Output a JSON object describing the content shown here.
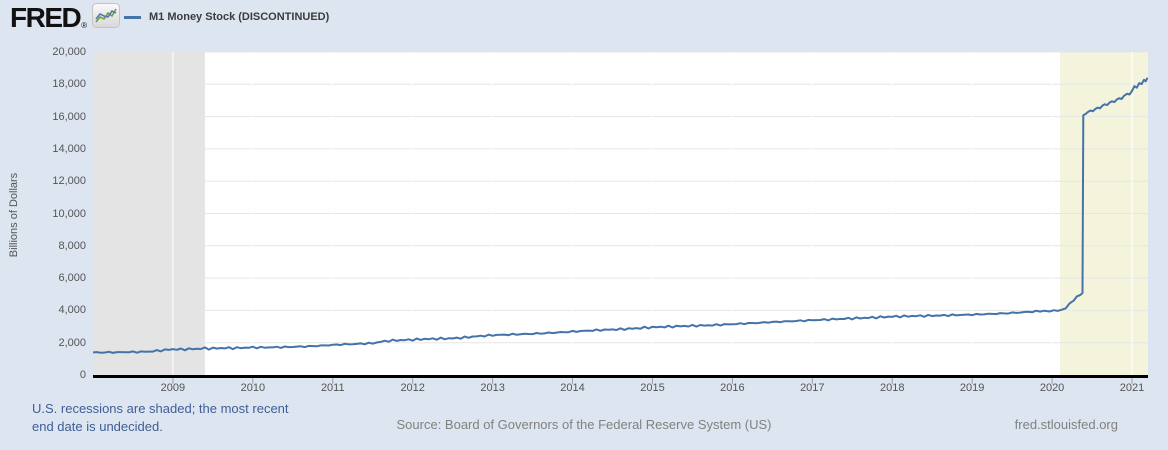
{
  "header": {
    "logo_text": "FRED",
    "registered_mark": "®",
    "legend": {
      "series_label": "M1 Money Stock (DISCONTINUED)",
      "series_color": "#4572a7"
    }
  },
  "chart_data": {
    "type": "line",
    "title": "M1 Money Stock (DISCONTINUED)",
    "xlabel": "",
    "ylabel": "Billions of Dollars",
    "x_domain": [
      2008.0,
      2021.2
    ],
    "ylim": [
      0,
      20000
    ],
    "y_ticks": [
      0,
      2000,
      4000,
      6000,
      8000,
      10000,
      12000,
      14000,
      16000,
      18000,
      20000
    ],
    "x_ticks": [
      2009,
      2010,
      2011,
      2012,
      2013,
      2014,
      2015,
      2016,
      2017,
      2018,
      2019,
      2020,
      2021
    ],
    "grid": "horizontal",
    "legend_position": "top-left",
    "plot_bg": "#ffffff",
    "gridline_color": "#e6e6e6",
    "axis_color": "#000000",
    "tick_color": "#9e9e9e",
    "recession_bands": [
      {
        "start": 2008.0,
        "end": 2009.4,
        "color": "#e4e4e4"
      },
      {
        "start": 2020.1,
        "end": 2021.2,
        "color": "#f4f4dc"
      }
    ],
    "series": [
      {
        "name": "M1 Money Stock (DISCONTINUED)",
        "color": "#4572a7",
        "points": [
          [
            2008.0,
            1400
          ],
          [
            2008.1,
            1395
          ],
          [
            2008.2,
            1405
          ],
          [
            2008.3,
            1400
          ],
          [
            2008.4,
            1415
          ],
          [
            2008.5,
            1420
          ],
          [
            2008.6,
            1435
          ],
          [
            2008.7,
            1450
          ],
          [
            2008.75,
            1470
          ],
          [
            2008.85,
            1520
          ],
          [
            2009.0,
            1595
          ],
          [
            2009.1,
            1585
          ],
          [
            2009.2,
            1605
          ],
          [
            2009.3,
            1620
          ],
          [
            2009.4,
            1655
          ],
          [
            2009.45,
            1640
          ],
          [
            2009.55,
            1655
          ],
          [
            2009.65,
            1670
          ],
          [
            2009.75,
            1665
          ],
          [
            2009.9,
            1690
          ],
          [
            2010.0,
            1710
          ],
          [
            2010.1,
            1705
          ],
          [
            2010.25,
            1715
          ],
          [
            2010.4,
            1730
          ],
          [
            2010.5,
            1745
          ],
          [
            2010.65,
            1765
          ],
          [
            2010.8,
            1800
          ],
          [
            2010.9,
            1830
          ],
          [
            2011.0,
            1865
          ],
          [
            2011.1,
            1890
          ],
          [
            2011.25,
            1915
          ],
          [
            2011.4,
            1945
          ],
          [
            2011.5,
            1965
          ],
          [
            2011.55,
            2010
          ],
          [
            2011.65,
            2095
          ],
          [
            2011.75,
            2135
          ],
          [
            2011.9,
            2165
          ],
          [
            2012.0,
            2185
          ],
          [
            2012.1,
            2215
          ],
          [
            2012.25,
            2240
          ],
          [
            2012.4,
            2255
          ],
          [
            2012.5,
            2270
          ],
          [
            2012.65,
            2320
          ],
          [
            2012.8,
            2395
          ],
          [
            2012.9,
            2430
          ],
          [
            2013.0,
            2465
          ],
          [
            2013.15,
            2490
          ],
          [
            2013.3,
            2520
          ],
          [
            2013.45,
            2545
          ],
          [
            2013.6,
            2575
          ],
          [
            2013.75,
            2615
          ],
          [
            2013.9,
            2655
          ],
          [
            2014.0,
            2690
          ],
          [
            2014.15,
            2730
          ],
          [
            2014.3,
            2775
          ],
          [
            2014.45,
            2805
          ],
          [
            2014.6,
            2835
          ],
          [
            2014.75,
            2875
          ],
          [
            2014.9,
            2925
          ],
          [
            2015.0,
            2955
          ],
          [
            2015.15,
            2985
          ],
          [
            2015.3,
            3010
          ],
          [
            2015.45,
            3040
          ],
          [
            2015.6,
            3060
          ],
          [
            2015.75,
            3085
          ],
          [
            2015.9,
            3120
          ],
          [
            2016.0,
            3150
          ],
          [
            2016.15,
            3185
          ],
          [
            2016.3,
            3225
          ],
          [
            2016.45,
            3265
          ],
          [
            2016.6,
            3300
          ],
          [
            2016.75,
            3335
          ],
          [
            2016.9,
            3370
          ],
          [
            2017.0,
            3395
          ],
          [
            2017.15,
            3425
          ],
          [
            2017.3,
            3460
          ],
          [
            2017.45,
            3495
          ],
          [
            2017.6,
            3525
          ],
          [
            2017.75,
            3555
          ],
          [
            2017.9,
            3590
          ],
          [
            2018.0,
            3615
          ],
          [
            2018.15,
            3635
          ],
          [
            2018.3,
            3655
          ],
          [
            2018.45,
            3670
          ],
          [
            2018.6,
            3685
          ],
          [
            2018.75,
            3705
          ],
          [
            2018.9,
            3725
          ],
          [
            2019.0,
            3740
          ],
          [
            2019.15,
            3765
          ],
          [
            2019.3,
            3795
          ],
          [
            2019.45,
            3830
          ],
          [
            2019.6,
            3875
          ],
          [
            2019.75,
            3920
          ],
          [
            2019.9,
            3975
          ],
          [
            2019.97,
            3995
          ],
          [
            2020.02,
            3965
          ],
          [
            2020.07,
            3990
          ],
          [
            2020.12,
            4035
          ],
          [
            2020.17,
            4140
          ],
          [
            2020.22,
            4395
          ],
          [
            2020.27,
            4665
          ],
          [
            2020.31,
            4850
          ],
          [
            2020.35,
            4995
          ],
          [
            2020.38,
            5080
          ],
          [
            2020.39,
            16080
          ],
          [
            2020.42,
            16170
          ],
          [
            2020.45,
            16290
          ],
          [
            2020.48,
            16380
          ],
          [
            2020.51,
            16330
          ],
          [
            2020.54,
            16470
          ],
          [
            2020.57,
            16560
          ],
          [
            2020.6,
            16510
          ],
          [
            2020.63,
            16680
          ],
          [
            2020.66,
            16760
          ],
          [
            2020.69,
            16710
          ],
          [
            2020.72,
            16870
          ],
          [
            2020.75,
            16950
          ],
          [
            2020.78,
            16900
          ],
          [
            2020.81,
            17060
          ],
          [
            2020.84,
            17140
          ],
          [
            2020.87,
            17090
          ],
          [
            2020.9,
            17290
          ],
          [
            2020.94,
            17420
          ],
          [
            2020.97,
            17370
          ],
          [
            2021.0,
            17590
          ],
          [
            2021.03,
            17880
          ],
          [
            2021.06,
            17790
          ],
          [
            2021.09,
            18070
          ],
          [
            2021.12,
            18010
          ],
          [
            2021.15,
            18280
          ],
          [
            2021.17,
            18180
          ],
          [
            2021.19,
            18360
          ]
        ]
      }
    ]
  },
  "footer": {
    "note_line1": "U.S. recessions are shaded; the most recent",
    "note_line2": "end date is undecided.",
    "source": "Source: Board of Governors of the Federal Reserve System (US)",
    "site": "fred.stlouisfed.org"
  },
  "colors": {
    "page_bg": "#dde5f0",
    "note_blue": "#3d5e96",
    "footer_gray": "#818181",
    "logo_green": "#6f9f3f",
    "logo_blue": "#5878a8"
  }
}
